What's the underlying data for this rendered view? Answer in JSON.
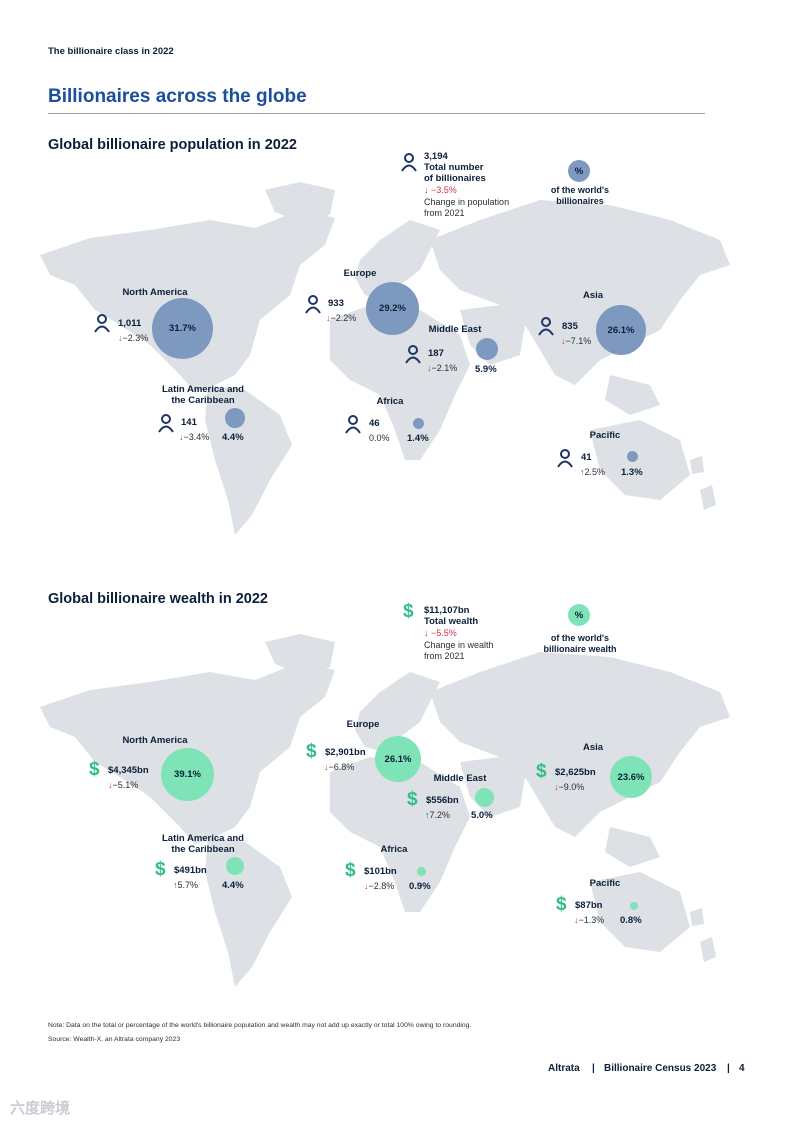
{
  "header": {
    "kicker": "The billionaire class in 2022",
    "title": "Billionaires across the globe"
  },
  "population": {
    "title": "Global billionaire population in 2022",
    "total": {
      "value": "3,194",
      "label_l1": "Total number",
      "label_l2": "of billionaires",
      "change": "↓ −3.5%",
      "change_l1": "Change in population",
      "change_l2": "from 2021"
    },
    "legend": {
      "symbol": "%",
      "l1": "of the world's",
      "l2": "billionaires"
    },
    "regions": {
      "north_america": {
        "name": "North America",
        "value": "1,011",
        "change": "−2.3%",
        "dir": "down",
        "share": "31.7%"
      },
      "latin_america": {
        "name_l1": "Latin America and",
        "name_l2": "the Caribbean",
        "value": "141",
        "change": "−3.4%",
        "dir": "down",
        "share": "4.4%"
      },
      "europe": {
        "name": "Europe",
        "value": "933",
        "change": "−2.2%",
        "dir": "down",
        "share": "29.2%"
      },
      "middle_east": {
        "name": "Middle East",
        "value": "187",
        "change": "−2.1%",
        "dir": "down",
        "share": "5.9%"
      },
      "africa": {
        "name": "Africa",
        "value": "46",
        "change": "0.0%",
        "dir": "none",
        "share": "1.4%"
      },
      "asia": {
        "name": "Asia",
        "value": "835",
        "change": "−7.1%",
        "dir": "down",
        "share": "26.1%"
      },
      "pacific": {
        "name": "Pacific",
        "value": "41",
        "change": "2.5%",
        "dir": "up",
        "share": "1.3%"
      }
    }
  },
  "wealth": {
    "title": "Global billionaire wealth in 2022",
    "total": {
      "value": "$11,107bn",
      "label": "Total wealth",
      "change": "↓ −5.5%",
      "change_l1": "Change in wealth",
      "change_l2": "from 2021"
    },
    "legend": {
      "symbol": "%",
      "l1": "of the world's",
      "l2": "billionaire wealth"
    },
    "regions": {
      "north_america": {
        "name": "North America",
        "value": "$4,345bn",
        "change": "−5.1%",
        "dir": "down",
        "share": "39.1%"
      },
      "latin_america": {
        "name_l1": "Latin America and",
        "name_l2": "the Caribbean",
        "value": "$491bn",
        "change": "5.7%",
        "dir": "up",
        "share": "4.4%"
      },
      "europe": {
        "name": "Europe",
        "value": "$2,901bn",
        "change": "−6.8%",
        "dir": "down",
        "share": "26.1%"
      },
      "middle_east": {
        "name": "Middle East",
        "value": "$556bn",
        "change": "7.2%",
        "dir": "up",
        "share": "5.0%"
      },
      "africa": {
        "name": "Africa",
        "value": "$101bn",
        "change": "−2.8%",
        "dir": "down",
        "share": "0.9%"
      },
      "asia": {
        "name": "Asia",
        "value": "$2,625bn",
        "change": "−9.0%",
        "dir": "down",
        "share": "23.6%"
      },
      "pacific": {
        "name": "Pacific",
        "value": "$87bn",
        "change": "−1.3%",
        "dir": "down",
        "share": "0.8%"
      }
    }
  },
  "notes": {
    "note": "Note: Data on the total or percentage of the world's billionaire population and wealth may not add up exactly or total 100% owing to rounding.",
    "source": "Source: Wealth-X, an Altrata company 2023"
  },
  "footer": {
    "brand": "Altrata",
    "sep1": "|",
    "report": "Billionaire Census 2023",
    "sep2": "|",
    "page": "4"
  },
  "watermark": "六度跨境",
  "colors": {
    "title_blue": "#1b4f9c",
    "pop_bubble": "#7d99bf",
    "wealth_bubble": "#7ee3b6",
    "map_grey": "#dde0e4",
    "down_arrow": "#d6324a",
    "up_arrow": "#2a62b8"
  }
}
